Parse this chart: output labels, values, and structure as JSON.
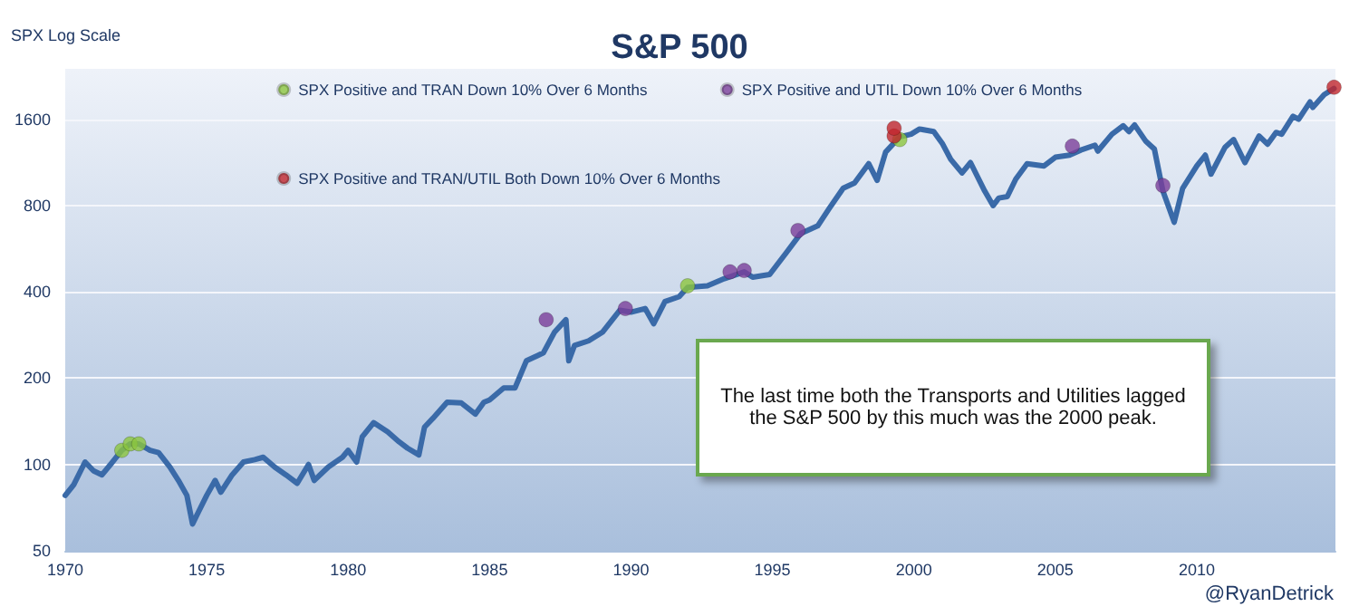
{
  "chart_data": {
    "type": "line",
    "title": "S&P 500",
    "ylabel": "SPX Log Scale",
    "log": "y",
    "grid": "y",
    "legend": "top",
    "line_style": "solid",
    "xlim": [
      1970,
      2014.9
    ],
    "xticks": [
      1970,
      1975,
      1980,
      1985,
      1990,
      1995,
      2000,
      2005,
      2010
    ],
    "ylim": [
      50,
      2400
    ],
    "yticks": [
      50,
      100,
      200,
      400,
      800,
      1600
    ],
    "annotations": [
      "The last time both the Transports and Utilities lagged the S&P 500 by this much was the 2000 peak.",
      "@RyanDetrick"
    ],
    "series": [
      {
        "marker": "none",
        "color": "#3a6aa8",
        "x": [
          1970,
          1970.3,
          1970.7,
          1971,
          1971.3,
          1971.6,
          1972,
          1972.3,
          1972.6,
          1973,
          1973.3,
          1973.7,
          1974,
          1974.3,
          1974.5,
          1974.7,
          1975,
          1975.3,
          1975.5,
          1975.9,
          1976.3,
          1976.7,
          1977,
          1977.4,
          1977.8,
          1978.2,
          1978.6,
          1978.8,
          1979.3,
          1979.8,
          1980,
          1980.3,
          1980.5,
          1980.9,
          1981.4,
          1981.8,
          1982.1,
          1982.5,
          1982.7,
          1983,
          1983.5,
          1984,
          1984.5,
          1984.8,
          1985,
          1985.5,
          1985.9,
          1986.3,
          1986.7,
          1986.9,
          1987.3,
          1987.7,
          1987.8,
          1988,
          1988.5,
          1989,
          1989.6,
          1990,
          1990.5,
          1990.8,
          1991.2,
          1991.7,
          1992,
          1992.7,
          1993.3,
          1994,
          1994.3,
          1994.9,
          1995.5,
          1996,
          1996.6,
          1997,
          1997.5,
          1997.9,
          1998.4,
          1998.7,
          1999,
          1999.5,
          1999.9,
          2000.2,
          2000.7,
          2001,
          2001.3,
          2001.7,
          2002,
          2002.5,
          2002.8,
          2003,
          2003.3,
          2003.6,
          2004,
          2004.6,
          2005,
          2005.5,
          2005.9,
          2006.4,
          2006.5,
          2007,
          2007.4,
          2007.6,
          2007.8,
          2008.2,
          2008.5,
          2008.8,
          2009.2,
          2009.5,
          2010,
          2010.3,
          2010.5,
          2011,
          2011.3,
          2011.7,
          2012.2,
          2012.5,
          2012.8,
          2013,
          2013.4,
          2013.6,
          2014,
          2014.1,
          2014.5,
          2014.85
        ],
        "values": [
          78,
          85,
          102,
          95,
          92,
          100,
          112,
          118,
          118,
          112,
          110,
          98,
          88,
          78,
          62,
          68,
          78,
          88,
          80,
          92,
          102,
          104,
          106,
          98,
          92,
          86,
          100,
          88,
          98,
          106,
          112,
          102,
          125,
          140,
          130,
          120,
          114,
          108,
          135,
          145,
          165,
          164,
          150,
          165,
          168,
          185,
          185,
          230,
          240,
          245,
          290,
          320,
          230,
          260,
          270,
          290,
          345,
          340,
          350,
          310,
          370,
          385,
          415,
          420,
          445,
          470,
          450,
          460,
          550,
          640,
          680,
          780,
          920,
          960,
          1120,
          980,
          1230,
          1390,
          1420,
          1480,
          1450,
          1320,
          1160,
          1040,
          1130,
          900,
          800,
          850,
          860,
          990,
          1120,
          1100,
          1180,
          1200,
          1250,
          1300,
          1240,
          1420,
          1520,
          1450,
          1530,
          1340,
          1260,
          900,
          700,
          920,
          1100,
          1200,
          1030,
          1280,
          1360,
          1130,
          1400,
          1310,
          1440,
          1420,
          1640,
          1600,
          1840,
          1760,
          1950,
          2050
        ]
      },
      {
        "type": "scatter",
        "marker": "circle",
        "name": "SPX Positive and TRAN Down 10% Over 6 Months",
        "color": "#8cc63f",
        "x": [
          1972,
          1972.3,
          1972.6,
          1992,
          1999.5
        ],
        "values": [
          112,
          118,
          118,
          420,
          1360
        ]
      },
      {
        "type": "scatter",
        "marker": "circle",
        "name": "SPX Positive and UTIL Down 10% Over 6 Months",
        "color": "#7a3f9a",
        "x": [
          1987,
          1989.8,
          1993.5,
          1994,
          1995.9,
          2005.6,
          2008.8
        ],
        "values": [
          320,
          350,
          470,
          475,
          655,
          1290,
          940
        ]
      },
      {
        "type": "scatter",
        "marker": "circle",
        "name": "SPX Positive and TRAN/UTIL Both Down 10% Over 6 Months",
        "color": "#c0272d",
        "x": [
          1999.3,
          1999.3,
          2014.85
        ],
        "values": [
          1400,
          1490,
          2070
        ]
      }
    ]
  }
}
